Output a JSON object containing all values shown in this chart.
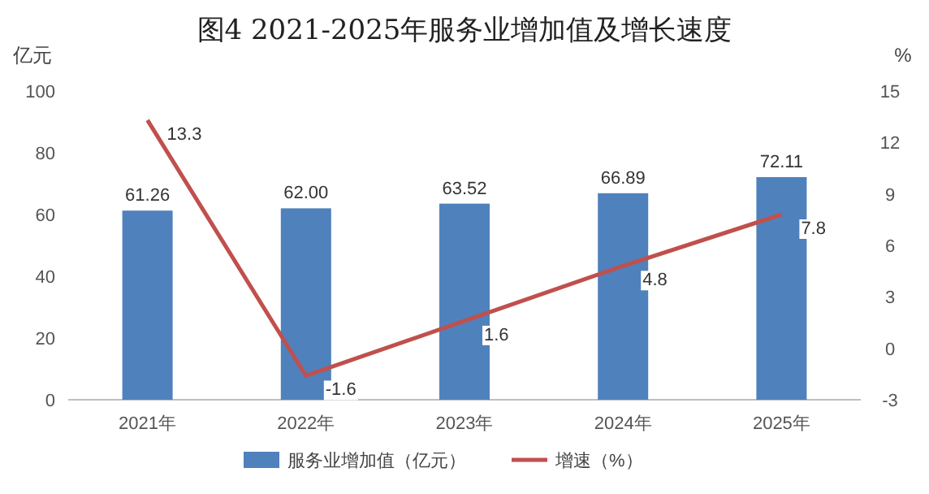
{
  "chart_data": {
    "type": "bar",
    "title": "图4 2021-2025年服务业增加值及增长速度",
    "categories": [
      "2021年",
      "2022年",
      "2023年",
      "2024年",
      "2025年"
    ],
    "ylabel": "亿元",
    "y2label": "%",
    "ylim": [
      0,
      100
    ],
    "yticks": [
      0,
      20,
      40,
      60,
      80,
      100
    ],
    "y2lim": [
      -3,
      15
    ],
    "y2ticks": [
      -3,
      0,
      3,
      6,
      9,
      12,
      15
    ],
    "legend": "bottom",
    "series": [
      {
        "name": "服务业增加值（亿元）",
        "color": "#4f81bd",
        "values": [
          61.26,
          62.0,
          63.52,
          66.89,
          72.11
        ],
        "value_labels": [
          "61.26",
          "62.00",
          "63.52",
          "66.89",
          "72.11"
        ]
      },
      {
        "name": "增速（%）",
        "type": "line",
        "axis": "y2",
        "color": "#c0504d",
        "values": [
          13.3,
          -1.6,
          1.6,
          4.8,
          7.8
        ],
        "value_labels": [
          "13.3",
          "-1.6",
          "1.6",
          "4.8",
          "7.8"
        ]
      }
    ]
  }
}
